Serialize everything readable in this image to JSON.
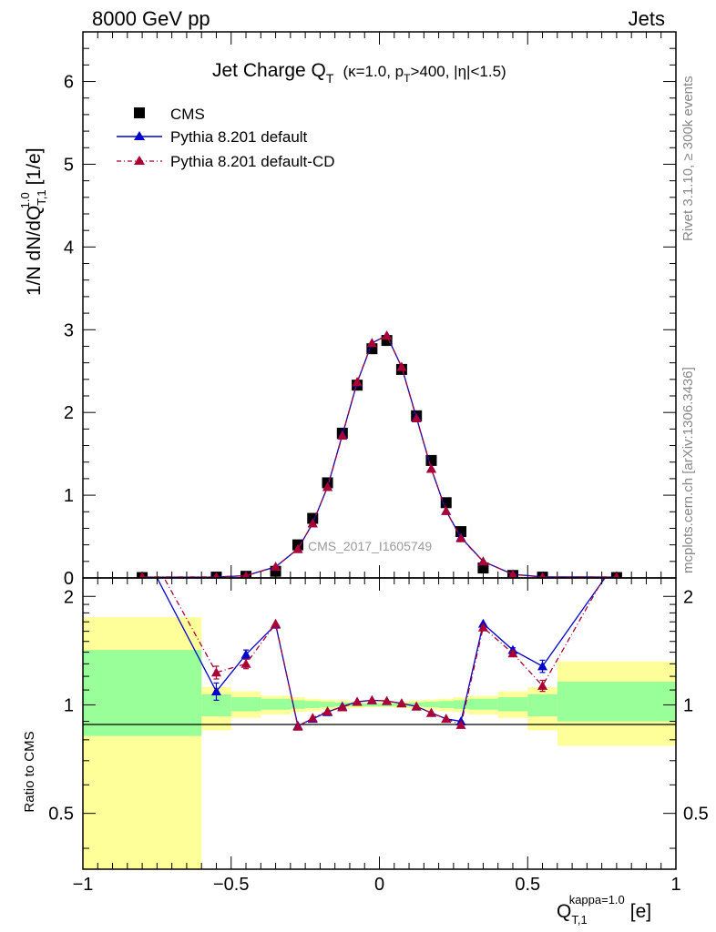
{
  "header": {
    "left": "8000 GeV pp",
    "right": "Jets"
  },
  "side_labels": {
    "rivet": "Rivet 3.1.10, ≥ 300k events",
    "mcplots": "mcplots.cern.ch [arXiv:1306.3436]"
  },
  "colors": {
    "cms": "#000000",
    "pythia_default": "#0000cc",
    "pythia_cd": "#aa0033",
    "band_inner": "#99ff99",
    "band_outer": "#ffff99"
  },
  "chart_data": [
    {
      "type": "scatter",
      "title": "Jet Charge Q",
      "title_sub": "T",
      "title_details": "(κ=1.0, p",
      "title_details_sub": "T",
      "title_details_end": ">400, |η|<1.5)",
      "ylabel": "1/N dN/dQ",
      "ylabel_sup": "1.0",
      "ylabel_sub": "T,1",
      "ylabel_unit": "[1/e]",
      "watermark": "CMS_2017_I1605749",
      "xlim": [
        -1.0,
        1.0
      ],
      "ylim": [
        0,
        6.6
      ],
      "grid": false,
      "legend_position": "top-left",
      "yticks": [
        "0",
        "1",
        "2",
        "3",
        "4",
        "5",
        "6"
      ],
      "series": [
        {
          "name": "CMS",
          "marker": "square",
          "x": [
            -0.8,
            -0.55,
            -0.45,
            -0.35,
            -0.275,
            -0.225,
            -0.175,
            -0.125,
            -0.075,
            -0.025,
            0.025,
            0.075,
            0.125,
            0.175,
            0.225,
            0.275,
            0.35,
            0.45,
            0.55,
            0.8
          ],
          "y": [
            0.005,
            0.01,
            0.02,
            0.08,
            0.4,
            0.72,
            1.15,
            1.75,
            2.33,
            2.77,
            2.87,
            2.52,
            1.96,
            1.42,
            0.91,
            0.56,
            0.12,
            0.03,
            0.01,
            0.005
          ]
        },
        {
          "name": "Pythia 8.201 default",
          "marker": "triangle",
          "line": "solid",
          "x": [
            -0.8,
            -0.55,
            -0.45,
            -0.35,
            -0.275,
            -0.225,
            -0.175,
            -0.125,
            -0.075,
            -0.025,
            0.025,
            0.075,
            0.125,
            0.175,
            0.225,
            0.275,
            0.35,
            0.45,
            0.55,
            0.8
          ],
          "y": [
            0.01,
            0.011,
            0.028,
            0.135,
            0.35,
            0.66,
            1.1,
            1.73,
            2.36,
            2.84,
            2.93,
            2.55,
            1.94,
            1.32,
            0.81,
            0.49,
            0.2,
            0.044,
            0.013,
            0.01
          ]
        },
        {
          "name": "Pythia 8.201 default-CD",
          "marker": "triangle",
          "line": "dash-dot",
          "x": [
            -0.8,
            -0.55,
            -0.45,
            -0.35,
            -0.275,
            -0.225,
            -0.175,
            -0.125,
            -0.075,
            -0.025,
            0.025,
            0.075,
            0.125,
            0.175,
            0.225,
            0.275,
            0.35,
            0.45,
            0.55,
            0.8
          ],
          "y": [
            0.012,
            0.012,
            0.026,
            0.136,
            0.35,
            0.66,
            1.1,
            1.72,
            2.37,
            2.84,
            2.93,
            2.55,
            1.93,
            1.32,
            0.81,
            0.48,
            0.2,
            0.042,
            0.011,
            0.012
          ]
        }
      ]
    },
    {
      "type": "line",
      "ylabel": "Ratio to CMS",
      "xlabel": "Q",
      "xlabel_sup": "kappa=1.0",
      "xlabel_sub": "T,1",
      "xlabel_unit": "[e]",
      "xlim": [
        -1.0,
        1.0
      ],
      "ylim": [
        0.35,
        2.25
      ],
      "ticks_x": [
        "−1",
        "−0.5",
        "0",
        "0.5",
        "1"
      ],
      "ticks_y": [
        "0.5",
        "1",
        "2"
      ],
      "bands": {
        "edges": [
          -1.0,
          -0.6,
          -0.5,
          -0.4,
          -0.3,
          -0.25,
          -0.2,
          -0.15,
          -0.1,
          -0.05,
          0.0,
          0.05,
          0.1,
          0.15,
          0.2,
          0.25,
          0.3,
          0.4,
          0.5,
          0.6,
          1.0
        ],
        "inner_lo": [
          0.82,
          0.93,
          0.96,
          0.97,
          0.975,
          0.98,
          0.985,
          0.99,
          0.99,
          0.99,
          0.99,
          0.99,
          0.99,
          0.985,
          0.98,
          0.975,
          0.97,
          0.96,
          0.93,
          0.9
        ],
        "inner_hi": [
          1.42,
          1.07,
          1.05,
          1.04,
          1.03,
          1.025,
          1.02,
          1.015,
          1.01,
          1.01,
          1.01,
          1.01,
          1.015,
          1.02,
          1.025,
          1.03,
          1.04,
          1.05,
          1.07,
          1.16
        ],
        "outer_lo": [
          0.34,
          0.85,
          0.92,
          0.94,
          0.955,
          0.96,
          0.97,
          0.975,
          0.98,
          0.985,
          0.985,
          0.98,
          0.975,
          0.97,
          0.96,
          0.955,
          0.94,
          0.92,
          0.85,
          0.77
        ],
        "outer_hi": [
          1.75,
          1.12,
          1.09,
          1.06,
          1.05,
          1.04,
          1.035,
          1.03,
          1.02,
          1.02,
          1.02,
          1.02,
          1.03,
          1.035,
          1.04,
          1.05,
          1.06,
          1.09,
          1.12,
          1.32
        ]
      },
      "series": [
        {
          "name": "Pythia 8.201 default",
          "x": [
            -0.8,
            -0.55,
            -0.45,
            -0.35,
            -0.275,
            -0.225,
            -0.175,
            -0.125,
            -0.075,
            -0.025,
            0.025,
            0.075,
            0.125,
            0.175,
            0.225,
            0.275,
            0.35,
            0.45,
            0.55,
            0.8
          ],
          "y": [
            2.7,
            1.09,
            1.38,
            1.67,
            0.875,
            0.915,
            0.955,
            0.99,
            1.02,
            1.03,
            1.025,
            1.01,
            0.99,
            0.95,
            0.915,
            0.9,
            1.68,
            1.42,
            1.28,
            2.5
          ],
          "err": [
            0,
            0.06,
            0.04,
            0,
            0,
            0,
            0,
            0,
            0,
            0,
            0,
            0,
            0,
            0,
            0,
            0,
            0,
            0.02,
            0.05,
            0
          ]
        },
        {
          "name": "Pythia 8.201 default-CD",
          "x": [
            -0.8,
            -0.55,
            -0.45,
            -0.35,
            -0.275,
            -0.225,
            -0.175,
            -0.125,
            -0.075,
            -0.025,
            0.025,
            0.075,
            0.125,
            0.175,
            0.225,
            0.275,
            0.35,
            0.45,
            0.55,
            0.8
          ],
          "y": [
            2.9,
            1.23,
            1.3,
            1.68,
            0.87,
            0.92,
            0.96,
            0.985,
            1.02,
            1.03,
            1.025,
            1.01,
            0.99,
            0.95,
            0.915,
            0.88,
            1.64,
            1.39,
            1.13,
            2.6
          ],
          "err": [
            0,
            0.05,
            0.04,
            0,
            0,
            0,
            0,
            0,
            0,
            0,
            0,
            0,
            0,
            0,
            0,
            0,
            0,
            0.02,
            0.04,
            0
          ]
        }
      ]
    }
  ]
}
